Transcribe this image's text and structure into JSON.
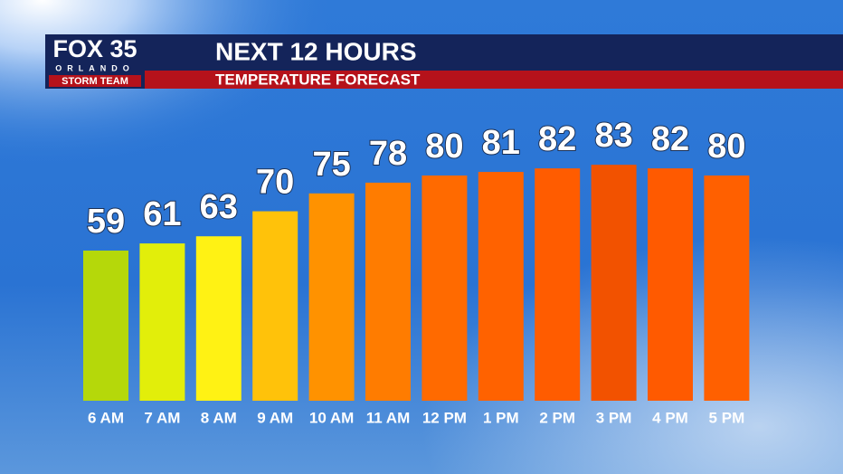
{
  "brand": {
    "name": "FOX 35",
    "city": "ORLANDO",
    "team": "STORM TEAM"
  },
  "chart_data": {
    "type": "bar",
    "title": "NEXT 12 HOURS",
    "subtitle": "TEMPERATURE FORECAST",
    "categories": [
      "6 AM",
      "7 AM",
      "8 AM",
      "9 AM",
      "10 AM",
      "11 AM",
      "12 PM",
      "1 PM",
      "2 PM",
      "3 PM",
      "4 PM",
      "5 PM"
    ],
    "values": [
      59,
      61,
      63,
      70,
      75,
      78,
      80,
      81,
      82,
      83,
      82,
      80
    ],
    "colors": [
      "#b5d80a",
      "#e2ee0a",
      "#fff214",
      "#ffc20a",
      "#ff9200",
      "#ff7c00",
      "#ff6a00",
      "#ff6200",
      "#ff5c00",
      "#f25200",
      "#ff5a00",
      "#ff6000"
    ],
    "ylim": [
      17,
      100
    ]
  }
}
